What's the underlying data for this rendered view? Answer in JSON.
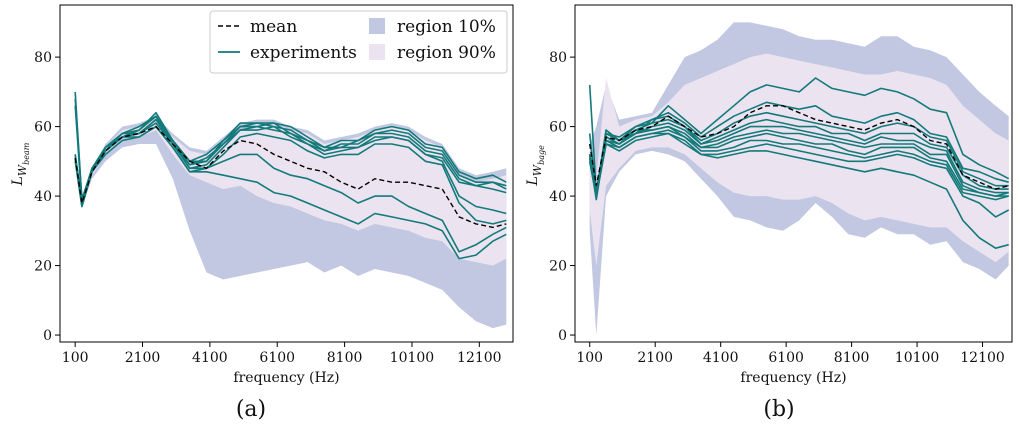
{
  "chart_data": [
    {
      "type": "line",
      "id": "a",
      "caption": "(a)",
      "xlabel": "frequency (Hz)",
      "ylabel": "L_{W_beam}",
      "ylabel_main": "L",
      "ylabel_sub1": "W",
      "ylabel_sub2": "beam",
      "xlim": [
        -350,
        13100
      ],
      "ylim": [
        -2,
        95
      ],
      "xticks": [
        100,
        2100,
        4100,
        6100,
        8100,
        10100,
        12100
      ],
      "yticks": [
        0,
        20,
        40,
        60,
        80
      ],
      "legend": {
        "position": "top-right",
        "items": [
          {
            "label": "mean",
            "kind": "dashed-line",
            "color": "#000000"
          },
          {
            "label": "experiments",
            "kind": "line",
            "color": "#137a7a"
          },
          {
            "label": "region 10%",
            "kind": "patch",
            "color": "#c2c8e2"
          },
          {
            "label": "region 90%",
            "kind": "patch",
            "color": "#ece3f1"
          }
        ]
      },
      "x": [
        100,
        300,
        600,
        1000,
        1500,
        2000,
        2500,
        3000,
        3500,
        4000,
        4500,
        5000,
        5500,
        6000,
        6500,
        7000,
        7500,
        8000,
        8500,
        9000,
        9500,
        10000,
        10500,
        11000,
        11500,
        12000,
        12500,
        12900
      ],
      "region_10": {
        "upper": [
          52,
          40,
          48,
          55,
          60,
          61,
          63,
          58,
          54,
          53,
          57,
          61,
          62,
          62,
          60,
          59,
          56,
          57,
          58,
          60,
          61,
          60,
          57,
          55,
          48,
          46,
          47,
          48
        ],
        "lower": [
          50,
          37,
          45,
          50,
          54,
          55,
          55,
          45,
          30,
          18,
          16,
          17,
          18,
          19,
          20,
          21,
          18,
          20,
          17,
          19,
          18,
          17,
          15,
          13,
          8,
          4,
          2,
          3
        ]
      },
      "region_90": {
        "upper": [
          51,
          39,
          47,
          54,
          59,
          60,
          62,
          57,
          53,
          52,
          55,
          59,
          61,
          61,
          59,
          58,
          55,
          56,
          57,
          59,
          60,
          59,
          56,
          54,
          46,
          44,
          45,
          46
        ],
        "lower": [
          51,
          38,
          46,
          52,
          57,
          57,
          59,
          52,
          46,
          44,
          42,
          43,
          40,
          38,
          37,
          35,
          33,
          32,
          30,
          32,
          31,
          30,
          28,
          27,
          22,
          21,
          20,
          22
        ]
      },
      "mean": [
        51,
        38,
        47,
        53,
        57,
        58,
        60,
        55,
        50,
        48,
        53,
        56,
        55,
        52,
        50,
        48,
        47,
        44,
        42,
        45,
        44,
        44,
        43,
        42,
        34,
        32,
        31,
        32
      ],
      "experiments": [
        [
          68,
          39,
          48,
          54,
          58,
          59,
          64,
          56,
          50,
          52,
          56,
          61,
          61,
          61,
          60,
          57,
          54,
          56,
          56,
          59,
          60,
          59,
          55,
          54,
          47,
          45,
          46,
          44
        ],
        [
          70,
          39,
          47,
          54,
          58,
          60,
          63,
          56,
          50,
          50,
          56,
          60,
          61,
          60,
          59,
          56,
          53,
          55,
          55,
          58,
          59,
          58,
          54,
          53,
          46,
          44,
          44,
          43
        ],
        [
          66,
          38,
          48,
          53,
          57,
          59,
          63,
          55,
          49,
          51,
          55,
          60,
          60,
          61,
          58,
          56,
          54,
          54,
          56,
          58,
          58,
          57,
          53,
          52,
          45,
          43,
          44,
          42
        ],
        [
          52,
          38,
          47,
          53,
          58,
          58,
          62,
          56,
          49,
          50,
          55,
          59,
          60,
          59,
          58,
          55,
          53,
          54,
          54,
          57,
          57,
          56,
          52,
          51,
          44,
          43,
          42,
          41
        ],
        [
          50,
          37,
          47,
          53,
          57,
          58,
          62,
          55,
          48,
          49,
          54,
          59,
          59,
          60,
          57,
          55,
          52,
          53,
          54,
          56,
          57,
          56,
          52,
          50,
          40,
          37,
          36,
          35
        ],
        [
          51,
          38,
          48,
          54,
          57,
          58,
          61,
          55,
          48,
          48,
          52,
          57,
          58,
          57,
          56,
          53,
          51,
          52,
          52,
          55,
          55,
          54,
          50,
          49,
          38,
          33,
          32,
          33
        ],
        [
          52,
          38,
          47,
          53,
          57,
          57,
          60,
          54,
          47,
          48,
          50,
          52,
          52,
          48,
          46,
          45,
          43,
          41,
          38,
          40,
          40,
          37,
          35,
          33,
          24,
          26,
          29,
          31
        ],
        [
          51,
          37,
          47,
          52,
          56,
          57,
          60,
          54,
          47,
          47,
          46,
          45,
          44,
          41,
          40,
          38,
          36,
          34,
          32,
          35,
          34,
          33,
          32,
          30,
          22,
          23,
          27,
          29
        ]
      ]
    },
    {
      "type": "line",
      "id": "b",
      "caption": "(b)",
      "xlabel": "frequency (Hz)",
      "ylabel": "L_{W_bage}",
      "ylabel_main": "L",
      "ylabel_sub1": "W",
      "ylabel_sub2": "bage",
      "xlim": [
        -350,
        13000
      ],
      "ylim": [
        -2,
        95
      ],
      "xticks": [
        100,
        2100,
        4100,
        6100,
        8100,
        10100,
        12100
      ],
      "yticks": [
        0,
        20,
        40,
        60,
        80
      ],
      "x": [
        100,
        300,
        600,
        1000,
        1500,
        2000,
        2500,
        3000,
        3500,
        4000,
        4500,
        5000,
        5500,
        6000,
        6500,
        7000,
        7500,
        8000,
        8500,
        9000,
        9500,
        10000,
        10500,
        11000,
        11500,
        12000,
        12500,
        12900
      ],
      "region_10": {
        "upper": [
          55,
          60,
          72,
          62,
          63,
          64,
          72,
          80,
          82,
          85,
          90,
          90,
          89,
          88,
          86,
          85,
          85,
          84,
          83,
          86,
          86,
          83,
          82,
          80,
          75,
          70,
          66,
          63
        ],
        "lower": [
          30,
          0,
          40,
          47,
          52,
          53,
          52,
          50,
          45,
          40,
          34,
          33,
          31,
          30,
          33,
          38,
          34,
          29,
          28,
          31,
          29,
          29,
          26,
          27,
          21,
          19,
          16,
          20
        ]
      },
      "region_90": {
        "upper": [
          54,
          45,
          74,
          60,
          62,
          63,
          67,
          72,
          74,
          76,
          78,
          80,
          81,
          80,
          79,
          78,
          77,
          76,
          75,
          75,
          76,
          75,
          74,
          72,
          66,
          62,
          58,
          56
        ],
        "lower": [
          36,
          20,
          43,
          48,
          53,
          54,
          54,
          52,
          48,
          44,
          41,
          40,
          40,
          39,
          39,
          40,
          38,
          35,
          33,
          34,
          33,
          32,
          31,
          31,
          27,
          24,
          21,
          24
        ]
      },
      "mean": [
        55,
        43,
        57,
        56,
        59,
        60,
        63,
        60,
        57,
        58,
        60,
        64,
        66,
        66,
        64,
        62,
        61,
        60,
        59,
        61,
        62,
        60,
        56,
        55,
        46,
        44,
        42,
        43
      ],
      "experiments": [
        [
          52,
          40,
          58,
          57,
          60,
          61,
          66,
          62,
          58,
          62,
          66,
          70,
          72,
          71,
          70,
          74,
          71,
          70,
          69,
          71,
          70,
          68,
          65,
          64,
          52,
          49,
          47,
          45
        ],
        [
          52,
          41,
          59,
          56,
          60,
          62,
          64,
          61,
          57,
          60,
          63,
          65,
          67,
          66,
          65,
          66,
          63,
          62,
          61,
          63,
          64,
          62,
          58,
          57,
          48,
          47,
          45,
          44
        ],
        [
          58,
          40,
          59,
          56,
          58,
          62,
          63,
          60,
          56,
          58,
          61,
          63,
          64,
          63,
          62,
          61,
          60,
          59,
          58,
          60,
          61,
          60,
          57,
          56,
          47,
          45,
          43,
          43
        ],
        [
          52,
          40,
          57,
          55,
          59,
          61,
          62,
          60,
          55,
          57,
          59,
          61,
          62,
          61,
          60,
          60,
          58,
          58,
          56,
          58,
          58,
          58,
          55,
          54,
          46,
          43,
          42,
          42
        ],
        [
          51,
          40,
          56,
          55,
          58,
          60,
          61,
          59,
          55,
          56,
          58,
          60,
          60,
          60,
          59,
          58,
          57,
          56,
          55,
          57,
          56,
          56,
          54,
          53,
          44,
          42,
          41,
          41
        ],
        [
          72,
          41,
          58,
          56,
          59,
          59,
          60,
          58,
          54,
          55,
          57,
          58,
          59,
          58,
          58,
          57,
          56,
          55,
          54,
          55,
          55,
          55,
          52,
          52,
          43,
          41,
          40,
          41
        ],
        [
          51,
          39,
          57,
          55,
          58,
          59,
          60,
          57,
          54,
          54,
          56,
          57,
          58,
          57,
          56,
          55,
          55,
          53,
          52,
          54,
          54,
          54,
          51,
          50,
          42,
          41,
          40,
          40
        ],
        [
          52,
          40,
          56,
          54,
          57,
          58,
          59,
          57,
          53,
          53,
          54,
          56,
          56,
          55,
          55,
          54,
          53,
          52,
          51,
          52,
          53,
          52,
          50,
          49,
          41,
          40,
          39,
          40
        ],
        [
          50,
          40,
          55,
          54,
          57,
          58,
          58,
          56,
          52,
          52,
          53,
          54,
          55,
          54,
          53,
          52,
          51,
          50,
          50,
          51,
          52,
          51,
          49,
          48,
          40,
          38,
          34,
          36
        ],
        [
          50,
          40,
          55,
          53,
          56,
          57,
          58,
          55,
          52,
          51,
          52,
          53,
          53,
          52,
          51,
          50,
          49,
          48,
          47,
          48,
          47,
          46,
          44,
          42,
          33,
          28,
          25,
          26
        ]
      ]
    }
  ],
  "colors": {
    "region_10": "#c2c8e2",
    "region_90": "#ece3f1",
    "experiments": "#137a7a",
    "mean": "#000000",
    "axes": "#000000"
  }
}
